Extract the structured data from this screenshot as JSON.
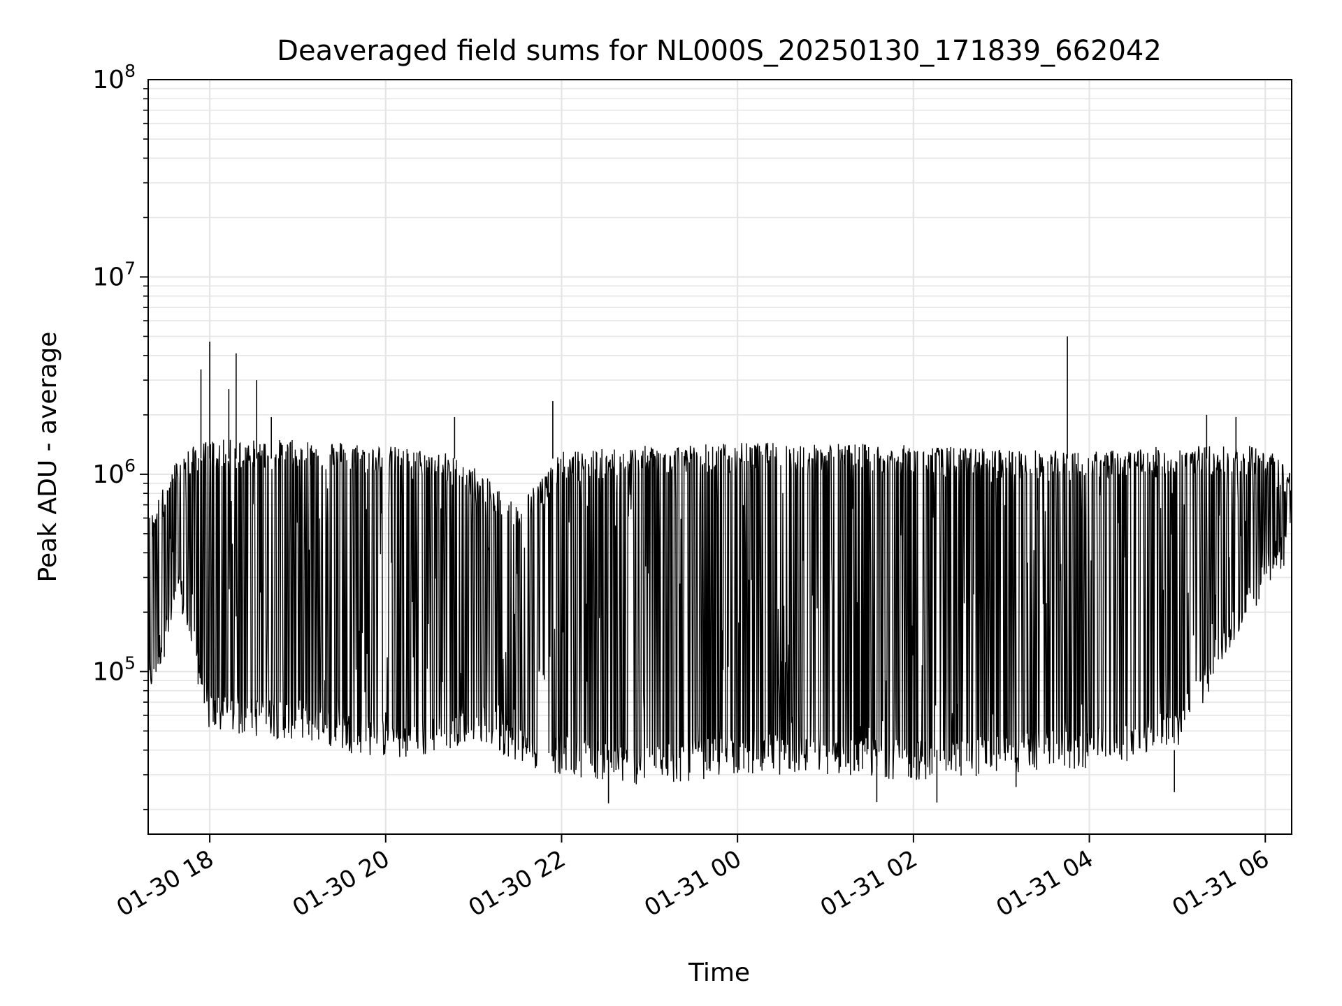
{
  "chart_data": {
    "type": "line",
    "title": "Deaveraged field sums for NL000S_20250130_171839_662042",
    "xlabel": "Time",
    "ylabel": "Peak ADU - average",
    "y_scale": "log",
    "x_range": [
      "2025-01-30 17:18",
      "2025-01-31 06:18"
    ],
    "ylim": [
      15000,
      100000000
    ],
    "x_tick_labels": [
      "01-30 18",
      "01-30 20",
      "01-30 22",
      "01-31 00",
      "01-31 02",
      "01-31 04",
      "01-31 06"
    ],
    "x_tick_times": [
      "2025-01-30 18:00",
      "2025-01-30 20:00",
      "2025-01-30 22:00",
      "2025-01-31 00:00",
      "2025-01-31 02:00",
      "2025-01-31 04:00",
      "2025-01-31 06:00"
    ],
    "y_tick_labels": [
      {
        "value": 100000,
        "base": "10",
        "exp": "5"
      },
      {
        "value": 1000000,
        "base": "10",
        "exp": "6"
      },
      {
        "value": 10000000,
        "base": "10",
        "exp": "7"
      },
      {
        "value": 100000000,
        "base": "10",
        "exp": "8"
      }
    ],
    "grid": true,
    "line_color": "#000000",
    "grid_color": "#e5e5e5",
    "series": [
      {
        "upper_envelope": [
          [
            "2025-01-30 17:18",
            600000
          ],
          [
            "2025-01-30 17:40",
            1300000
          ],
          [
            "2025-01-30 18:00",
            1500000
          ],
          [
            "2025-01-30 18:40",
            1500000
          ],
          [
            "2025-01-30 19:20",
            1500000
          ],
          [
            "2025-01-30 20:00",
            1400000
          ],
          [
            "2025-01-30 20:40",
            1300000
          ],
          [
            "2025-01-30 21:00",
            1100000
          ],
          [
            "2025-01-30 21:30",
            700000
          ],
          [
            "2025-01-30 22:00",
            1300000
          ],
          [
            "2025-01-30 23:00",
            1400000
          ],
          [
            "2025-01-31 00:00",
            1450000
          ],
          [
            "2025-01-31 01:00",
            1450000
          ],
          [
            "2025-01-31 02:00",
            1400000
          ],
          [
            "2025-01-31 03:00",
            1350000
          ],
          [
            "2025-01-31 04:00",
            1300000
          ],
          [
            "2025-01-31 05:00",
            1400000
          ],
          [
            "2025-01-31 06:00",
            1400000
          ],
          [
            "2025-01-31 06:18",
            1050000
          ]
        ],
        "lower_envelope": [
          [
            "2025-01-30 17:18",
            70000
          ],
          [
            "2025-01-30 17:40",
            200000
          ],
          [
            "2025-01-30 18:00",
            48000
          ],
          [
            "2025-01-30 19:00",
            45000
          ],
          [
            "2025-01-30 19:40",
            38000
          ],
          [
            "2025-01-30 20:20",
            35000
          ],
          [
            "2025-01-30 21:00",
            45000
          ],
          [
            "2025-01-30 21:40",
            32000
          ],
          [
            "2025-01-30 22:00",
            30000
          ],
          [
            "2025-01-30 23:00",
            26000
          ],
          [
            "2025-01-31 00:00",
            30000
          ],
          [
            "2025-01-31 01:00",
            30000
          ],
          [
            "2025-01-31 02:00",
            28000
          ],
          [
            "2025-01-31 03:00",
            30000
          ],
          [
            "2025-01-31 04:00",
            32000
          ],
          [
            "2025-01-31 05:00",
            40000
          ],
          [
            "2025-01-31 06:00",
            260000
          ],
          [
            "2025-01-31 06:18",
            380000
          ]
        ],
        "peaks": [
          [
            "2025-01-30 17:54",
            3400000
          ],
          [
            "2025-01-30 18:00",
            4700000
          ],
          [
            "2025-01-30 18:13",
            2700000
          ],
          [
            "2025-01-30 18:18",
            4100000
          ],
          [
            "2025-01-30 18:32",
            3000000
          ],
          [
            "2025-01-30 18:42",
            1950000
          ],
          [
            "2025-01-30 20:47",
            1950000
          ],
          [
            "2025-01-30 21:54",
            2350000
          ],
          [
            "2025-01-31 03:45",
            5000000
          ],
          [
            "2025-01-31 05:20",
            2000000
          ],
          [
            "2025-01-31 05:40",
            1950000
          ]
        ],
        "dips": [
          [
            "2025-01-30 22:32",
            21500
          ],
          [
            "2025-01-31 01:35",
            21800
          ],
          [
            "2025-01-31 02:16",
            21700
          ],
          [
            "2025-01-31 03:10",
            26000
          ],
          [
            "2025-01-31 04:58",
            24500
          ]
        ]
      }
    ]
  }
}
